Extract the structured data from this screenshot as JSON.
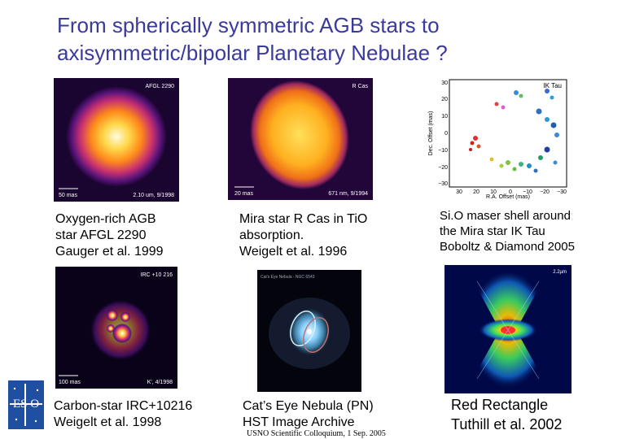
{
  "title": {
    "line1": "From spherically symmetric AGB stars to",
    "line2": "axisymmetric/bipolar Planetary Nebulae ?"
  },
  "panels": {
    "afgl": {
      "label": "AFGL 2290",
      "scale": "50 mas",
      "wave": "2.10 um, 9/1998",
      "caption": "Oxygen-rich AGB\nstar AFGL 2290\nGauger et al. 1999"
    },
    "rcas": {
      "label": "R Cas",
      "scale": "20 mas",
      "wave": "671 nm, 9/1994",
      "caption": "Mira star R Cas in TiO\nabsorption.\nWeigelt et al. 1996"
    },
    "ikTau": {
      "label": "IK Tau",
      "ylabel": "Dec. Offset (mas)",
      "xlabel": "R.A. Offset (mas)",
      "yticks": [
        "30",
        "20",
        "10",
        "0",
        "−10",
        "−20",
        "−30"
      ],
      "xticks": [
        "30",
        "20",
        "10",
        "0",
        "−10",
        "−20",
        "−30"
      ],
      "caption": "Si.O maser shell around\nthe Mira star IK Tau\nBoboltz & Diamond 2005"
    },
    "irc": {
      "label": "IRC +10 216",
      "scale": "100 mas",
      "wave": "K', 4/1998",
      "caption": "Carbon-star IRC+10216\nWeigelt et al. 1998"
    },
    "cat": {
      "label": "Cat's Eye Nebula - NGC 6543",
      "caption": "Cat’s Eye Nebula (PN)\nHST Image Archive"
    },
    "redRect": {
      "label": "2.2µm",
      "caption": "Red Rectangle\nTuthill et al. 2002"
    }
  },
  "footer": "USNO Scientific Colloquium, 1 Sep. 2005",
  "logo": {
    "text": "ES O",
    "icon": "eso-logo"
  }
}
